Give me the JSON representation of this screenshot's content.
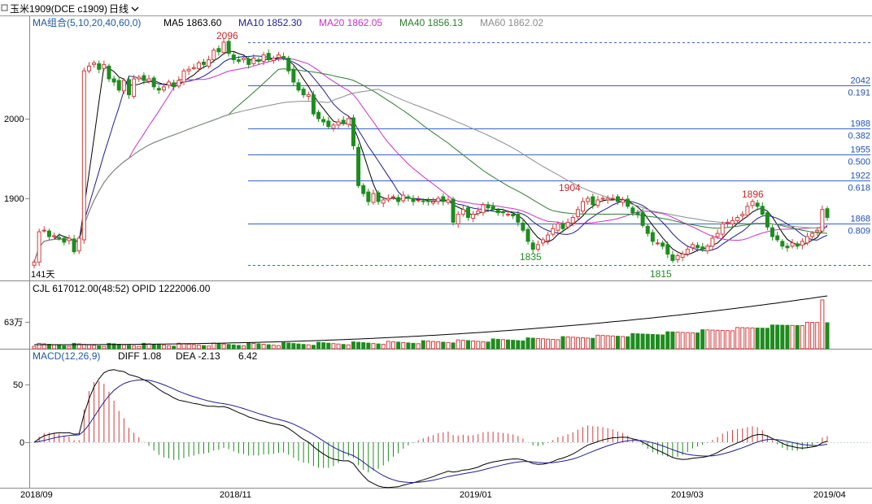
{
  "toolbar": {
    "symbol": "玉米1909(DCE c1909)",
    "period": "日线",
    "symbol_icon": "square-checkbox-icon",
    "dropdown_icon": "chevron-down-icon"
  },
  "colors": {
    "background": "#ffffff",
    "up": "#d23c3c",
    "down": "#1e8c1e",
    "ma5": "#000000",
    "ma10": "#1e1e8c",
    "ma20": "#c832c8",
    "ma40": "#2d7d2d",
    "ma60": "#8c8c8c",
    "fib_line": "#3264c8",
    "fib_text": "#1e50b4",
    "grid": "#c8d2e6",
    "macd_header": "#1e5aa0"
  },
  "main_panel": {
    "legend": [
      {
        "label": "MA组合(5,10,20,40,60,0)",
        "color": "#1e5aa0"
      },
      {
        "label": "MA5 1863.60",
        "color": "#000000"
      },
      {
        "label": "MA10 1852.30",
        "color": "#1e1e8c"
      },
      {
        "label": "MA20 1862.05",
        "color": "#c832c8"
      },
      {
        "label": "MA40 1856.13",
        "color": "#2d7d2d"
      },
      {
        "label": "MA60 1862.02",
        "color": "#8c8c8c"
      }
    ],
    "y_ticks": [
      "2000",
      "1900"
    ],
    "annotations": [
      "2096",
      "1904",
      "1896",
      "1835",
      "1815",
      "141天"
    ],
    "fib_levels": [
      {
        "price": "2042",
        "ratio": "0.191"
      },
      {
        "price": "1988",
        "ratio": "0.382"
      },
      {
        "price": "1955",
        "ratio": "0.500"
      },
      {
        "price": "1922",
        "ratio": "0.618"
      },
      {
        "price": "1868",
        "ratio": "0.809"
      }
    ]
  },
  "volume_panel": {
    "legend": "CJL   617012.00(48:52)   OPID 1222006.00",
    "y_tick": "63万"
  },
  "macd_panel": {
    "legend": [
      "MACD(12,26,9)",
      "DIFF 1.08",
      "DEA -2.13",
      "6.42"
    ],
    "y_ticks": [
      "50",
      "0"
    ]
  },
  "x_axis": {
    "labels": [
      "2018/09",
      "2018/11",
      "2019/01",
      "2019/03",
      "2019/04"
    ]
  },
  "chart_data": {
    "type": "candlestick",
    "x_start": "2018/09",
    "x_end": "2019/04",
    "price_range": [
      1808,
      2110
    ],
    "closes": [
      1820,
      1858,
      1860,
      1852,
      1853,
      1850,
      1845,
      1850,
      1833,
      1850,
      2060,
      2066,
      2070,
      2062,
      2068,
      2050,
      2046,
      2036,
      2048,
      2030,
      2050,
      2052,
      2048,
      2050,
      2040,
      2036,
      2040,
      2046,
      2040,
      2048,
      2060,
      2062,
      2064,
      2070,
      2068,
      2074,
      2086,
      2084,
      2096,
      2082,
      2074,
      2072,
      2076,
      2068,
      2076,
      2072,
      2080,
      2074,
      2076,
      2080,
      2076,
      2060,
      2046,
      2036,
      2030,
      2030,
      2006,
      2000,
      1996,
      1990,
      1992,
      1996,
      1994,
      2000,
      1966,
      1916,
      1906,
      1896,
      1906,
      1896,
      1898,
      1900,
      1902,
      1896,
      1904,
      1900,
      1896,
      1898,
      1896,
      1896,
      1896,
      1900,
      1896,
      1898,
      1870,
      1880,
      1886,
      1876,
      1880,
      1884,
      1892,
      1888,
      1886,
      1882,
      1882,
      1880,
      1878,
      1870,
      1860,
      1846,
      1836,
      1842,
      1848,
      1854,
      1862,
      1868,
      1862,
      1870,
      1876,
      1886,
      1896,
      1900,
      1892,
      1898,
      1900,
      1900,
      1900,
      1896,
      1898,
      1890,
      1882,
      1880,
      1866,
      1856,
      1846,
      1844,
      1840,
      1830,
      1822,
      1828,
      1830,
      1836,
      1842,
      1838,
      1836,
      1840,
      1850,
      1856,
      1868,
      1870,
      1872,
      1876,
      1880,
      1890,
      1896,
      1890,
      1880,
      1864,
      1852,
      1848,
      1840,
      1838,
      1844,
      1840,
      1846,
      1852,
      1856,
      1860,
      1886,
      1876
    ],
    "series": [
      {
        "name": "MA5",
        "value": 1863.6
      },
      {
        "name": "MA10",
        "value": 1852.3
      },
      {
        "name": "MA20",
        "value": 1862.05
      },
      {
        "name": "MA40",
        "value": 1856.13
      },
      {
        "name": "MA60",
        "value": 1862.02
      }
    ],
    "volume_latest": 617012.0,
    "open_interest": 1222006.0,
    "macd": {
      "DIFF": 1.08,
      "DEA": -2.13,
      "MACD": 6.42,
      "y_range": [
        -55,
        70
      ]
    }
  }
}
